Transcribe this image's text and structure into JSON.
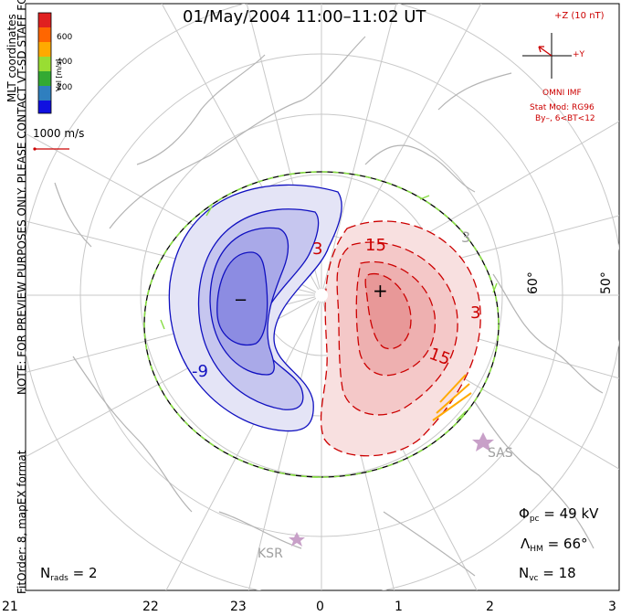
{
  "title": "01/May/2004 11:00–11:02 UT",
  "coord_system": "MLT coordinates",
  "legend": {
    "label": "Vel [m/s]",
    "ticks": [
      "200",
      "400",
      "600"
    ],
    "colors": [
      "#1010e0",
      "#2f7fbf",
      "#33aa33",
      "#99dd33",
      "#ffaa00",
      "#ff6600",
      "#e02020"
    ]
  },
  "vector_scale": "1000 m/s",
  "imf": {
    "z_label": "+Z (10 nT)",
    "y_label": "+Y",
    "source": "OMNI IMF",
    "model": "Stat Mod: RG96",
    "condition": "By–, 6<BT<12"
  },
  "notes": {
    "preview": "NOTE: FOR PREVIEW PURPOSES ONLY. PLEASE CONTACT VT-SD STAFF FOR VERIFICATION.",
    "fit": "FitOrder: 8, mapEX format"
  },
  "stats": {
    "phi_pc": {
      "symbol": "Φ",
      "sub": "pc",
      "value": "= 49 kV"
    },
    "lambda_hm": {
      "symbol": "Λ",
      "sub": "HM",
      "value": "= 66°"
    },
    "n_vc": {
      "symbol": "N",
      "sub": "vc",
      "value": "= 18"
    },
    "n_rads": {
      "symbol": "N",
      "sub": "rads",
      "value": "= 2"
    }
  },
  "lat_labels": [
    "60°",
    "50°"
  ],
  "mlt_ticks": [
    "21",
    "22",
    "23",
    "0",
    "1",
    "2",
    "3"
  ],
  "stations": [
    "SAS",
    "KSR"
  ],
  "contour_labels": [
    "-9",
    "15",
    "15",
    "3",
    "3",
    "3"
  ],
  "potential_markers": {
    "min": "−",
    "max": "+"
  }
}
